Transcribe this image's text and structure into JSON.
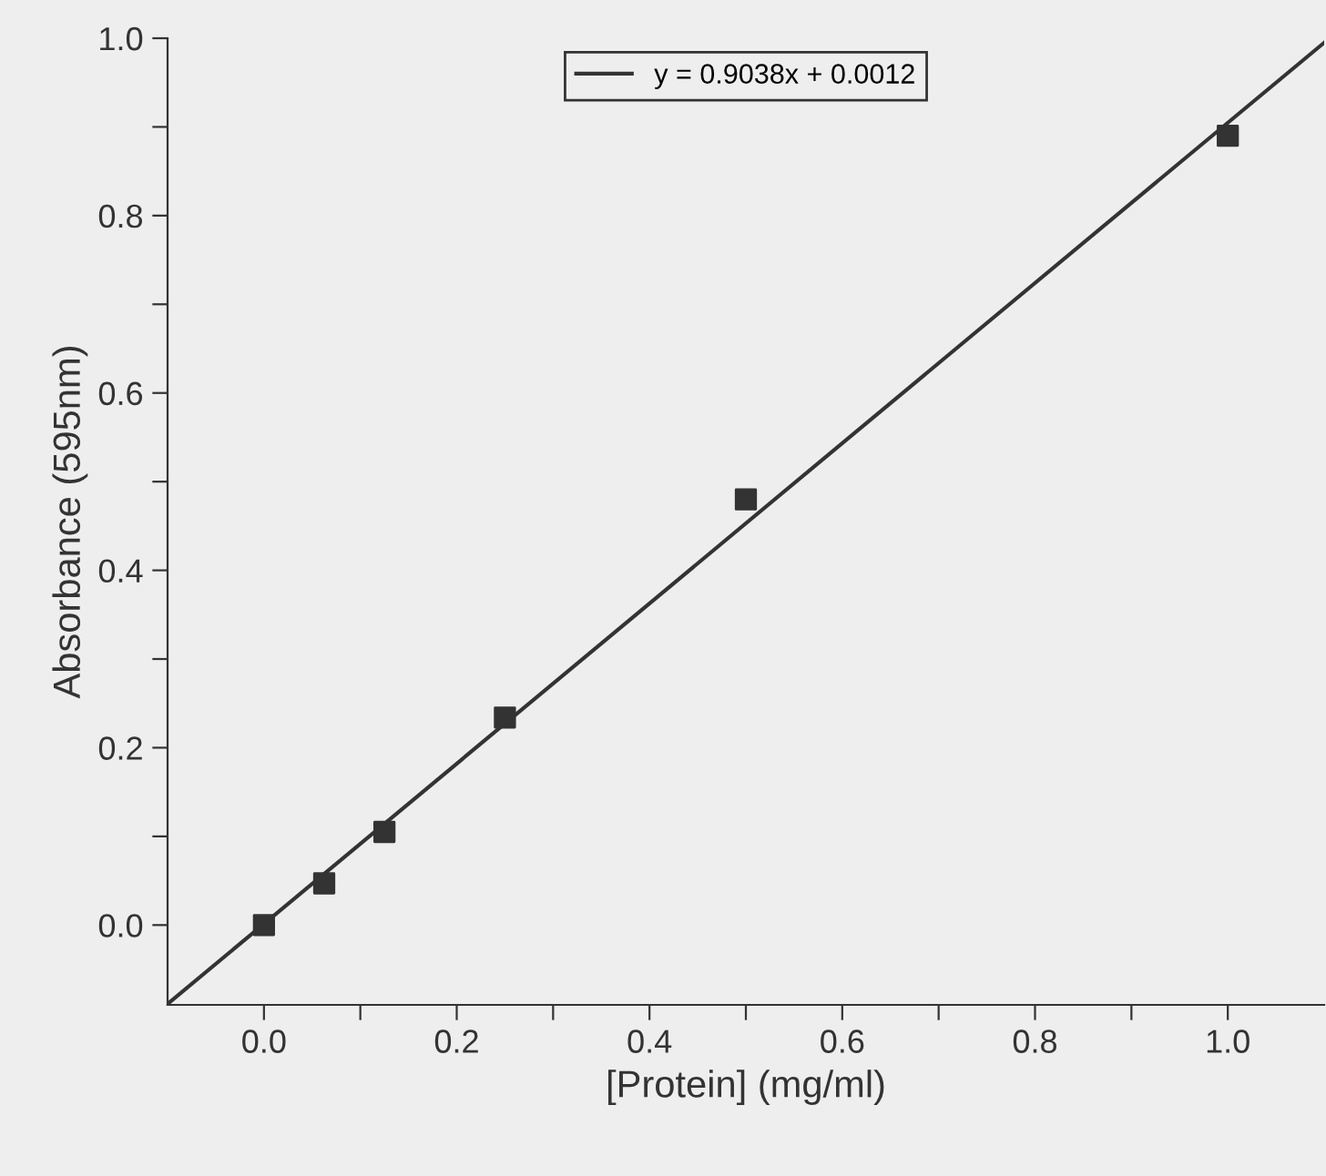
{
  "chart_data": {
    "type": "scatter",
    "xlabel": "[Protein] (mg/ml)",
    "ylabel": "Absorbance (595nm)",
    "xlim": [
      -0.1,
      1.1
    ],
    "ylim": [
      -0.09,
      1.0
    ],
    "xticks": [
      {
        "value": 0,
        "label": "0.0"
      },
      {
        "value": 0.1,
        "label": null
      },
      0.2,
      {
        "value": 0.3,
        "label": null
      },
      0.4,
      {
        "value": 0.5,
        "label": null
      },
      0.6,
      {
        "value": 0.7,
        "label": null
      },
      0.8,
      {
        "value": 0.9,
        "label": null
      },
      {
        "value": 1,
        "label": "1.0"
      }
    ],
    "yticks": [
      {
        "value": 0,
        "label": "0.0"
      },
      {
        "value": 0.1,
        "label": null
      },
      0.2,
      {
        "value": 0.3,
        "label": null
      },
      0.4,
      {
        "value": 0.5,
        "label": null
      },
      0.6,
      {
        "value": 0.7,
        "label": null
      },
      0.8,
      {
        "value": 0.9,
        "label": null
      },
      {
        "value": 1,
        "label": "1.0"
      }
    ],
    "grid": false,
    "legend": "top",
    "series": [
      {
        "color": "#333333",
        "marker": "square",
        "x": [
          0.0,
          0.0625,
          0.125,
          0.25,
          0.5,
          1.0
        ],
        "values": [
          0.0,
          0.047,
          0.105,
          0.234,
          0.48,
          0.89
        ]
      },
      {
        "type": "line",
        "name": "y = 0.9038x + 0.0012",
        "color": "#333333",
        "marker": "none",
        "line_style": "solid",
        "x": [
          -0.1,
          1.1
        ],
        "values": [
          -0.089,
          0.995
        ]
      }
    ]
  }
}
